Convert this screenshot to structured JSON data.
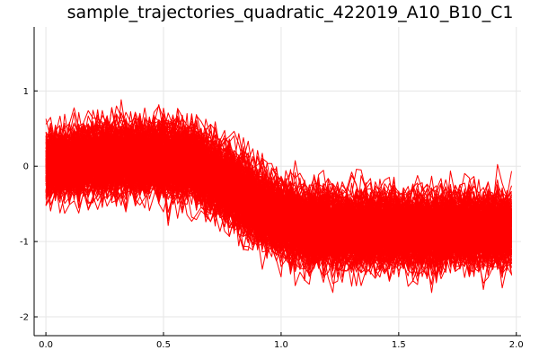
{
  "chart_data": {
    "type": "line",
    "title": "sample_trajectories_quadratic_422019_A10_B10_C1",
    "xlabel": "",
    "ylabel": "",
    "xlim": [
      -0.05,
      2.02
    ],
    "ylim": [
      -2.25,
      1.85
    ],
    "x_ticks": [
      0.0,
      0.5,
      1.0,
      1.5,
      2.0
    ],
    "x_tick_labels": [
      "0.0",
      "0.5",
      "1.0",
      "1.5",
      "2.0"
    ],
    "y_ticks": [
      1,
      0,
      -1,
      -2
    ],
    "y_tick_labels": [
      "1",
      "0",
      "-1",
      "-2"
    ],
    "grid": true,
    "legend": "none",
    "series_color": "#ff0000",
    "trajectory_count": 250,
    "x_start": 0.0,
    "x_end": 1.98,
    "x_step": 0.02,
    "mean_profile": {
      "x": [
        0.0,
        0.25,
        0.5,
        0.65,
        0.8,
        0.9,
        1.0,
        1.1,
        1.25,
        1.5,
        1.75,
        1.98
      ],
      "y": [
        0.0,
        0.1,
        0.1,
        0.0,
        -0.3,
        -0.55,
        -0.7,
        -0.8,
        -0.85,
        -0.85,
        -0.85,
        -0.85
      ]
    },
    "spread_profile": {
      "x": [
        0.0,
        0.25,
        0.5,
        0.75,
        1.0,
        1.5,
        1.98
      ],
      "y": [
        0.35,
        0.4,
        0.42,
        0.45,
        0.45,
        0.42,
        0.4
      ]
    }
  }
}
